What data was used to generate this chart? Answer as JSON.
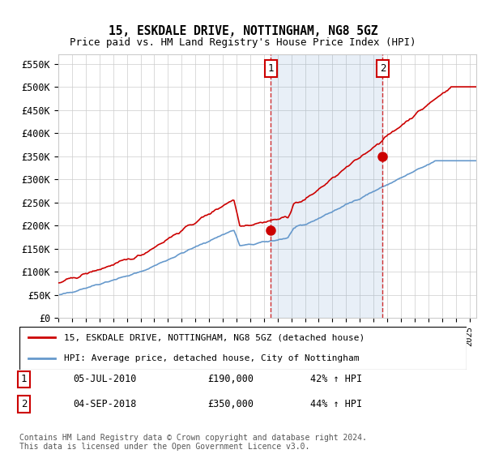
{
  "title1": "15, ESKDALE DRIVE, NOTTINGHAM, NG8 5GZ",
  "title2": "Price paid vs. HM Land Registry's House Price Index (HPI)",
  "ylabel_ticks": [
    "£0",
    "£50K",
    "£100K",
    "£150K",
    "£200K",
    "£250K",
    "£300K",
    "£350K",
    "£400K",
    "£450K",
    "£500K",
    "£550K"
  ],
  "ylabel_values": [
    0,
    50000,
    100000,
    150000,
    200000,
    250000,
    300000,
    350000,
    400000,
    450000,
    500000,
    550000
  ],
  "ylim": [
    0,
    570000
  ],
  "xlim_start": 1995.0,
  "xlim_end": 2025.5,
  "sale1_date": 2010.5,
  "sale1_price": 190000,
  "sale1_label": "1",
  "sale2_date": 2018.67,
  "sale2_price": 350000,
  "sale2_label": "2",
  "red_color": "#cc0000",
  "blue_color": "#6699cc",
  "dashed_color": "#cc0000",
  "background_color": "#f0f4ff",
  "plot_bg": "#ffffff",
  "legend_line1": "15, ESKDALE DRIVE, NOTTINGHAM, NG8 5GZ (detached house)",
  "legend_line2": "HPI: Average price, detached house, City of Nottingham",
  "annotation1_date": "05-JUL-2010",
  "annotation1_price": "£190,000",
  "annotation1_hpi": "42% ↑ HPI",
  "annotation2_date": "04-SEP-2018",
  "annotation2_price": "£350,000",
  "annotation2_hpi": "44% ↑ HPI",
  "footer": "Contains HM Land Registry data © Crown copyright and database right 2024.\nThis data is licensed under the Open Government Licence v3.0."
}
